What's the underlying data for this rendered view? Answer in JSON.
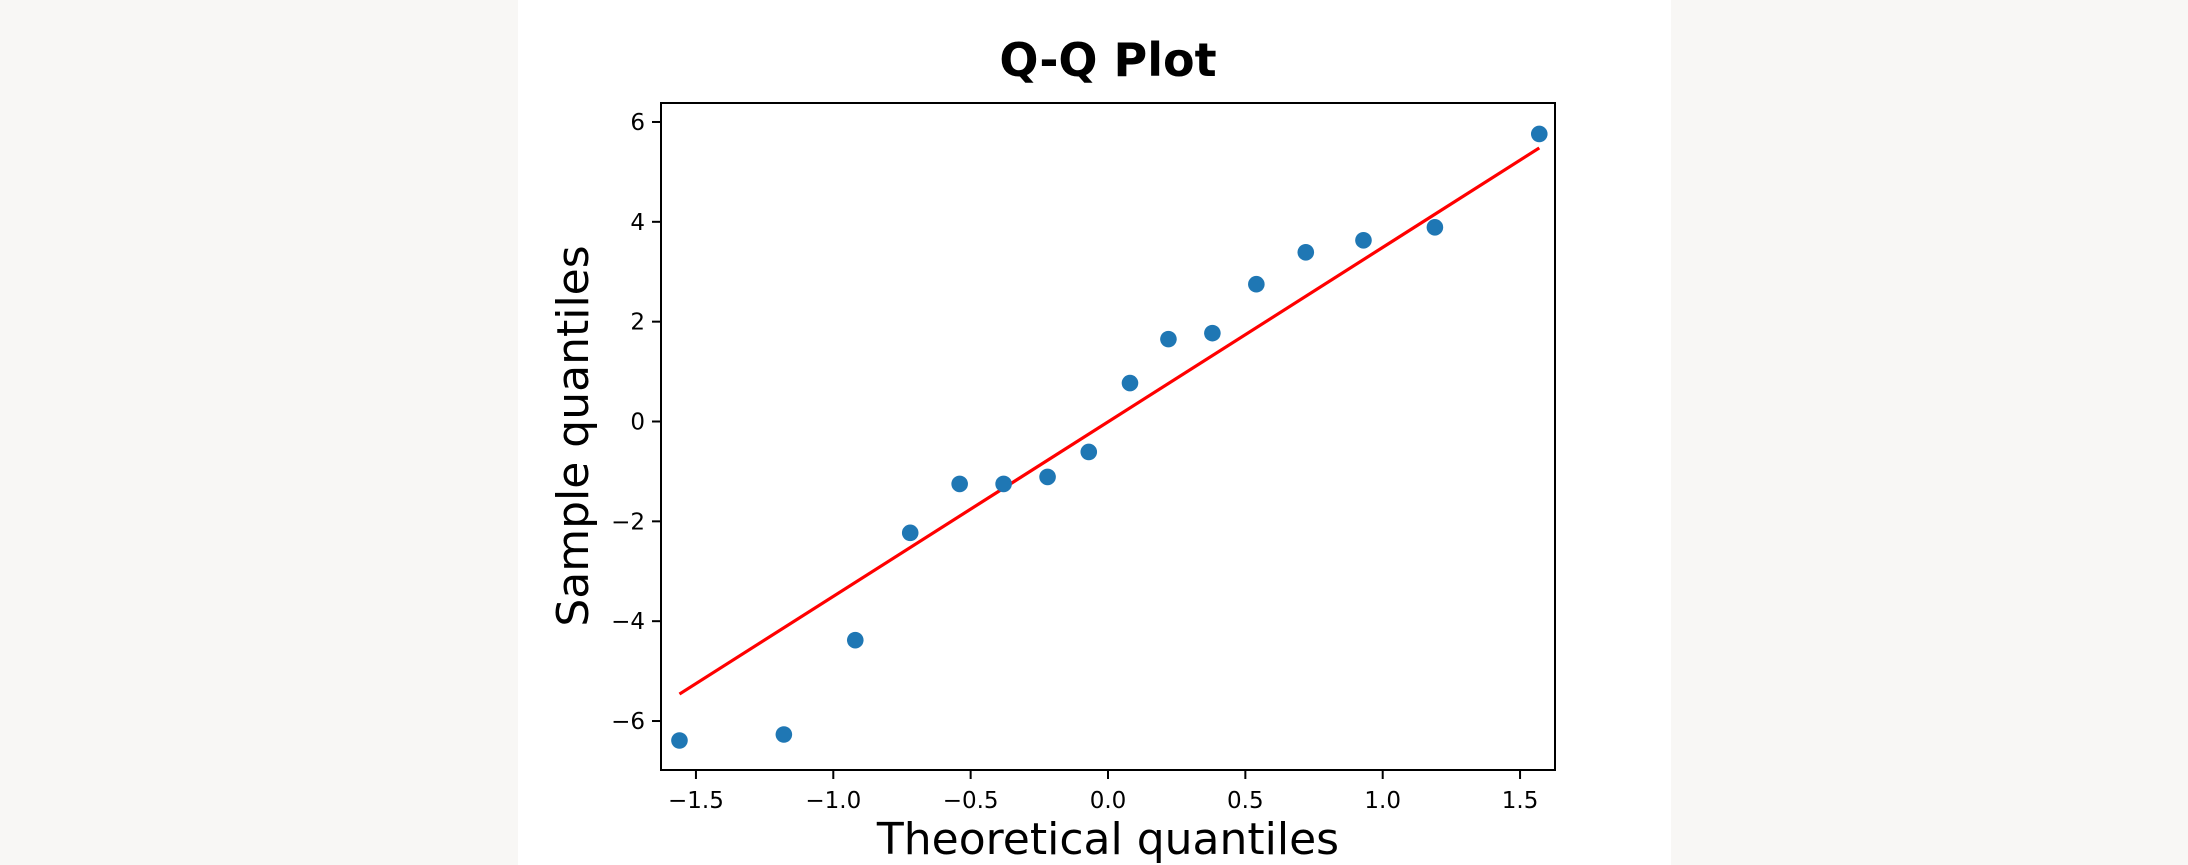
{
  "chart_data": {
    "type": "scatter",
    "title": "Q-Q Plot",
    "xlabel": "Theoretical quantiles",
    "ylabel": "Sample quantiles",
    "xlim": [
      -1.64,
      1.62
    ],
    "ylim": [
      -7.0,
      6.38
    ],
    "x_ticks": [
      -1.5,
      -1.0,
      -0.5,
      0.0,
      0.5,
      1.0,
      1.5
    ],
    "x_tick_labels": [
      "−1.5",
      "−1.0",
      "−0.5",
      "0.0",
      "0.5",
      "1.0",
      "1.5"
    ],
    "y_ticks": [
      6,
      4,
      2,
      0,
      -2,
      -4,
      -6
    ],
    "y_tick_labels": [
      "6",
      "4",
      "2",
      "0",
      "−2",
      "−4",
      "−6"
    ],
    "grid": false,
    "legend": null,
    "series": [
      {
        "name": "sample points",
        "kind": "scatter",
        "color": "#1f77b4",
        "x": [
          -1.56,
          -1.18,
          -0.92,
          -0.72,
          -0.54,
          -0.38,
          -0.22,
          -0.07,
          0.08,
          0.22,
          0.38,
          0.54,
          0.72,
          0.93,
          1.19,
          1.57
        ],
        "y": [
          -6.39,
          -6.27,
          -4.38,
          -2.23,
          -1.25,
          -1.25,
          -1.11,
          -0.61,
          0.77,
          1.65,
          1.77,
          2.75,
          3.39,
          3.63,
          3.89,
          5.76
        ]
      },
      {
        "name": "reference line",
        "kind": "line",
        "color": "#ff0000",
        "x": [
          -1.56,
          1.57
        ],
        "y": [
          -5.46,
          5.48
        ]
      }
    ]
  },
  "colors": {
    "background": "#f8f7f5",
    "panel": "#ffffff",
    "points": "#1f77b4",
    "line": "#ff0000",
    "axes": "#000000"
  }
}
